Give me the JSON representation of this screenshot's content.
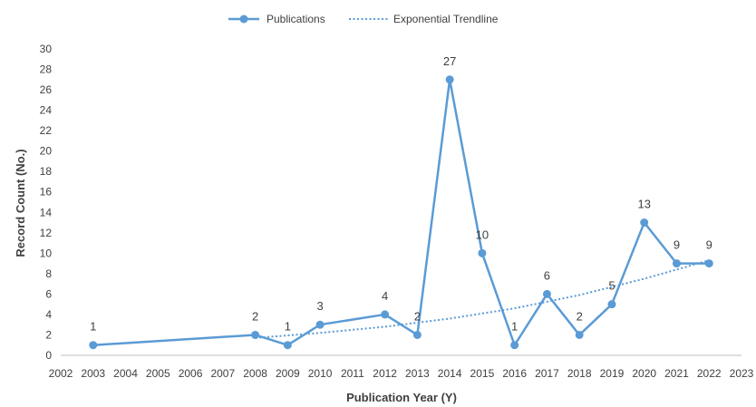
{
  "chart_data": {
    "type": "line",
    "title": "",
    "xlabel": "Publication Year (Y)",
    "ylabel": "Record Count (No.)",
    "xlim": [
      2002,
      2023
    ],
    "ylim": [
      0,
      30
    ],
    "y_tick_step": 2,
    "x_ticks": [
      2002,
      2003,
      2004,
      2005,
      2006,
      2007,
      2008,
      2009,
      2010,
      2011,
      2012,
      2013,
      2014,
      2015,
      2016,
      2017,
      2018,
      2019,
      2020,
      2021,
      2022,
      2023
    ],
    "grid": false,
    "legend_position": "top-center",
    "series": [
      {
        "name": "Publications",
        "color": "#5b9bd5",
        "x": [
          2003,
          2008,
          2009,
          2010,
          2012,
          2013,
          2014,
          2015,
          2016,
          2017,
          2018,
          2019,
          2020,
          2021,
          2022
        ],
        "values": [
          1,
          2,
          1,
          3,
          4,
          2,
          27,
          10,
          1,
          6,
          2,
          5,
          13,
          9,
          9
        ],
        "data_labels": true
      },
      {
        "name": "Exponential Trendline",
        "color": "#5b9bd5",
        "style": "dotted",
        "x": [
          2008,
          2010,
          2012,
          2014,
          2016,
          2018,
          2020,
          2022
        ],
        "values": [
          1.7,
          2.2,
          2.8,
          3.6,
          4.6,
          5.9,
          7.5,
          9.3
        ]
      }
    ]
  }
}
